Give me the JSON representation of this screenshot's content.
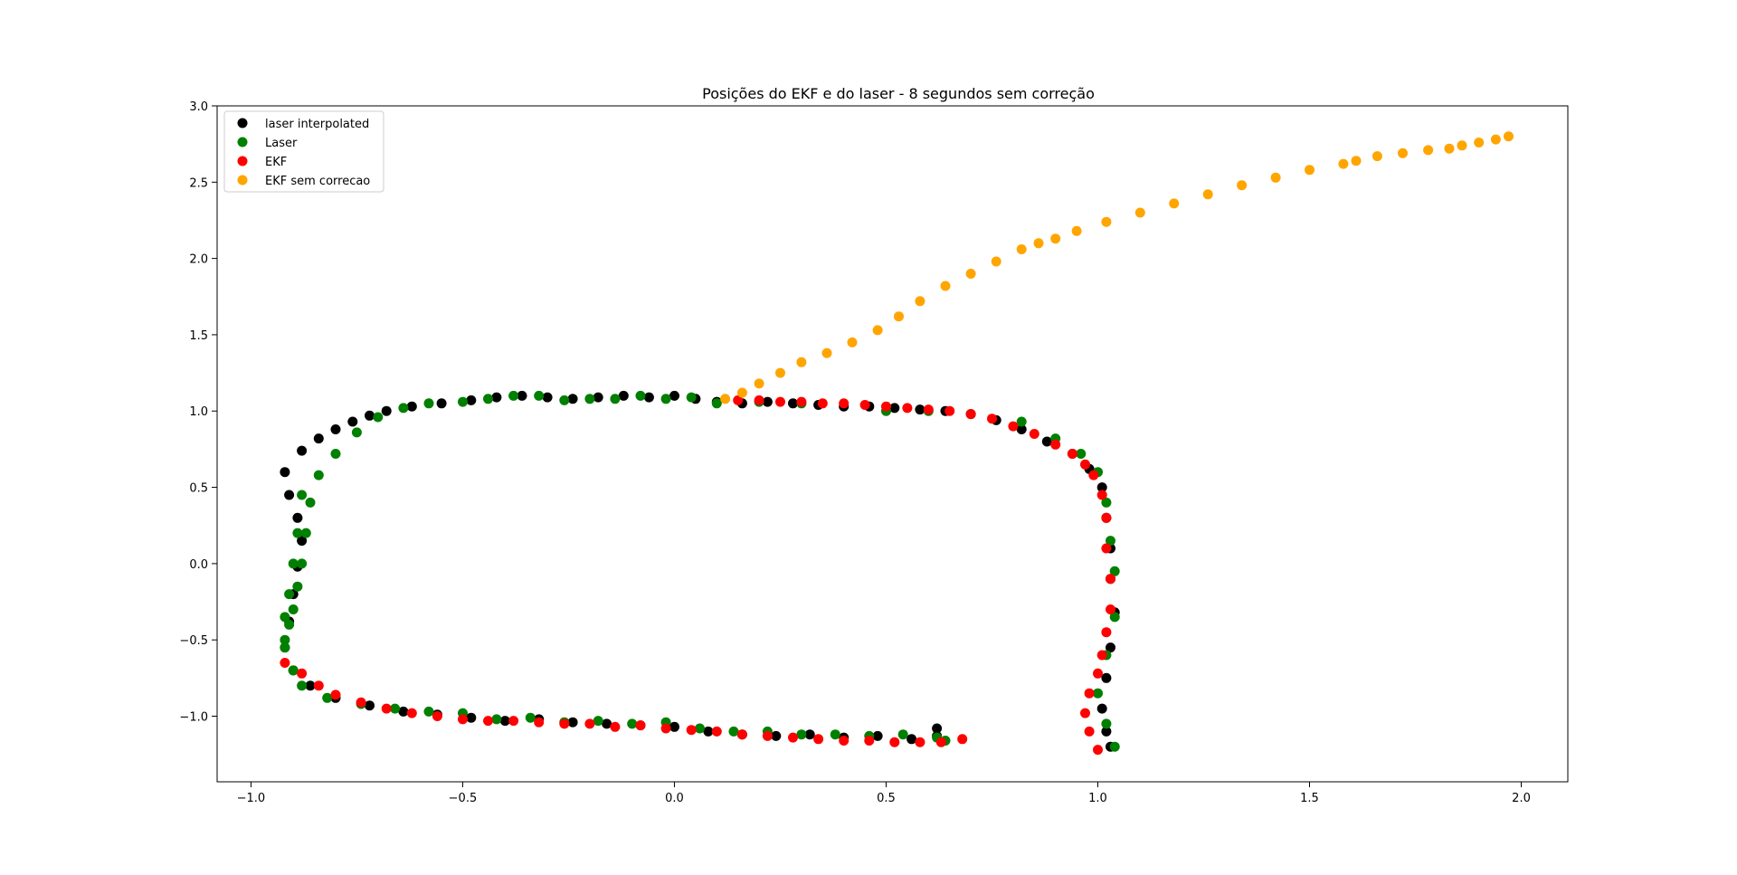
{
  "chart_data": {
    "type": "scatter",
    "title": "Posições do EKF e do laser - 8 segundos sem correção",
    "xlabel": "",
    "ylabel": "",
    "xlim": [
      -1.08,
      2.11
    ],
    "ylim": [
      -1.43,
      3.0
    ],
    "x_ticks": [
      -1.0,
      -0.5,
      0.0,
      0.5,
      1.0,
      1.5,
      2.0
    ],
    "x_tick_labels": [
      "−1.0",
      "−0.5",
      "0.0",
      "0.5",
      "1.0",
      "1.5",
      "2.0"
    ],
    "y_ticks": [
      -1.0,
      -0.5,
      0.0,
      0.5,
      1.0,
      1.5,
      2.0,
      2.5,
      3.0
    ],
    "y_tick_labels": [
      "−1.0",
      "−0.5",
      "0.0",
      "0.5",
      "1.0",
      "1.5",
      "2.0",
      "2.5",
      "3.0"
    ],
    "grid": false,
    "legend_position": "top-left",
    "series": [
      {
        "name": "laser interpolated",
        "color": "#000000",
        "x": [
          -0.92,
          -0.88,
          -0.84,
          -0.8,
          -0.76,
          -0.72,
          -0.68,
          -0.62,
          -0.55,
          -0.48,
          -0.42,
          -0.36,
          -0.3,
          -0.24,
          -0.18,
          -0.12,
          -0.06,
          0.0,
          0.05,
          0.1,
          0.16,
          0.22,
          0.28,
          0.34,
          0.4,
          0.46,
          0.52,
          0.58,
          0.64,
          0.7,
          0.76,
          0.82,
          0.88,
          0.94,
          0.98,
          1.01,
          1.02,
          1.03,
          1.03,
          1.04,
          1.03,
          1.02,
          1.01,
          1.02,
          1.03,
          -0.91,
          -0.89,
          -0.88,
          -0.89,
          -0.9,
          -0.91,
          -0.92,
          -0.9,
          -0.86,
          -0.8,
          -0.72,
          -0.64,
          -0.56,
          -0.48,
          -0.4,
          -0.32,
          -0.24,
          -0.16,
          -0.08,
          0.0,
          0.08,
          0.16,
          0.24,
          0.32,
          0.4,
          0.48,
          0.56,
          0.62,
          0.62
        ],
        "y": [
          0.6,
          0.74,
          0.82,
          0.88,
          0.93,
          0.97,
          1.0,
          1.03,
          1.05,
          1.07,
          1.09,
          1.1,
          1.09,
          1.08,
          1.09,
          1.1,
          1.09,
          1.1,
          1.08,
          1.06,
          1.05,
          1.06,
          1.05,
          1.04,
          1.03,
          1.03,
          1.02,
          1.01,
          1.0,
          0.98,
          0.94,
          0.88,
          0.8,
          0.72,
          0.62,
          0.5,
          0.3,
          0.1,
          -0.1,
          -0.32,
          -0.55,
          -0.75,
          -0.95,
          -1.1,
          -1.2,
          0.45,
          0.3,
          0.15,
          -0.02,
          -0.2,
          -0.38,
          -0.55,
          -0.7,
          -0.8,
          -0.88,
          -0.93,
          -0.97,
          -0.99,
          -1.01,
          -1.03,
          -1.02,
          -1.04,
          -1.05,
          -1.06,
          -1.07,
          -1.1,
          -1.12,
          -1.13,
          -1.12,
          -1.14,
          -1.13,
          -1.15,
          -1.13,
          -1.08
        ]
      },
      {
        "name": "Laser",
        "color": "#008000",
        "x": [
          -0.92,
          -0.91,
          -0.9,
          -0.89,
          -0.88,
          -0.87,
          -0.86,
          -0.84,
          -0.8,
          -0.75,
          -0.7,
          -0.64,
          -0.58,
          -0.5,
          -0.44,
          -0.38,
          -0.32,
          -0.26,
          -0.2,
          -0.14,
          -0.08,
          -0.02,
          0.04,
          0.1,
          0.2,
          0.3,
          0.5,
          0.6,
          0.7,
          0.82,
          0.9,
          0.96,
          1.0,
          1.02,
          1.03,
          1.04,
          1.04,
          1.02,
          1.0,
          1.02,
          1.04,
          -0.92,
          -0.92,
          -0.91,
          -0.9,
          -0.89,
          -0.88,
          -0.9,
          -0.88,
          -0.82,
          -0.74,
          -0.66,
          -0.58,
          -0.5,
          -0.42,
          -0.34,
          -0.26,
          -0.18,
          -0.1,
          -0.02,
          0.06,
          0.14,
          0.22,
          0.3,
          0.38,
          0.46,
          0.54,
          0.62,
          0.64
        ],
        "y": [
          -0.5,
          -0.4,
          -0.3,
          -0.15,
          0.0,
          0.2,
          0.4,
          0.58,
          0.72,
          0.86,
          0.96,
          1.02,
          1.05,
          1.06,
          1.08,
          1.1,
          1.1,
          1.07,
          1.08,
          1.08,
          1.1,
          1.08,
          1.09,
          1.05,
          1.06,
          1.05,
          1.0,
          1.0,
          0.98,
          0.93,
          0.82,
          0.72,
          0.6,
          0.4,
          0.15,
          -0.05,
          -0.35,
          -0.6,
          -0.85,
          -1.05,
          -1.2,
          -0.55,
          -0.35,
          -0.2,
          0.0,
          0.2,
          0.45,
          -0.7,
          -0.8,
          -0.88,
          -0.92,
          -0.95,
          -0.97,
          -0.98,
          -1.02,
          -1.01,
          -1.04,
          -1.03,
          -1.05,
          -1.04,
          -1.08,
          -1.1,
          -1.1,
          -1.12,
          -1.12,
          -1.13,
          -1.12,
          -1.14,
          -1.16
        ]
      },
      {
        "name": "EKF",
        "color": "#ff0000",
        "x": [
          0.15,
          0.2,
          0.25,
          0.3,
          0.35,
          0.4,
          0.45,
          0.5,
          0.55,
          0.6,
          0.65,
          0.7,
          0.75,
          0.8,
          0.85,
          0.9,
          0.94,
          0.97,
          0.99,
          1.01,
          1.02,
          1.02,
          1.03,
          1.03,
          1.02,
          1.01,
          1.0,
          0.98,
          0.97,
          0.98,
          1.0,
          -0.92,
          -0.88,
          -0.84,
          -0.8,
          -0.74,
          -0.68,
          -0.62,
          -0.56,
          -0.5,
          -0.44,
          -0.38,
          -0.32,
          -0.26,
          -0.2,
          -0.14,
          -0.08,
          -0.02,
          0.04,
          0.1,
          0.16,
          0.22,
          0.28,
          0.34,
          0.4,
          0.46,
          0.52,
          0.58,
          0.63,
          0.68
        ],
        "y": [
          1.07,
          1.07,
          1.06,
          1.06,
          1.05,
          1.05,
          1.04,
          1.03,
          1.02,
          1.01,
          1.0,
          0.98,
          0.95,
          0.9,
          0.85,
          0.78,
          0.72,
          0.65,
          0.58,
          0.45,
          0.3,
          0.1,
          -0.1,
          -0.3,
          -0.45,
          -0.6,
          -0.72,
          -0.85,
          -0.98,
          -1.1,
          -1.22,
          -0.65,
          -0.72,
          -0.8,
          -0.86,
          -0.91,
          -0.95,
          -0.98,
          -1.0,
          -1.02,
          -1.03,
          -1.03,
          -1.04,
          -1.05,
          -1.05,
          -1.07,
          -1.06,
          -1.08,
          -1.09,
          -1.1,
          -1.12,
          -1.13,
          -1.14,
          -1.15,
          -1.16,
          -1.16,
          -1.17,
          -1.17,
          -1.17,
          -1.15
        ]
      },
      {
        "name": "EKF sem correcao",
        "color": "#ffa500",
        "x": [
          0.12,
          0.16,
          0.2,
          0.25,
          0.3,
          0.36,
          0.42,
          0.48,
          0.53,
          0.58,
          0.64,
          0.7,
          0.76,
          0.82,
          0.86,
          0.9,
          0.95,
          1.02,
          1.1,
          1.18,
          1.26,
          1.34,
          1.42,
          1.5,
          1.58,
          1.61,
          1.66,
          1.72,
          1.78,
          1.83,
          1.86,
          1.9,
          1.94,
          1.97
        ],
        "y": [
          1.08,
          1.12,
          1.18,
          1.25,
          1.32,
          1.38,
          1.45,
          1.53,
          1.62,
          1.72,
          1.82,
          1.9,
          1.98,
          2.06,
          2.1,
          2.13,
          2.18,
          2.24,
          2.3,
          2.36,
          2.42,
          2.48,
          2.53,
          2.58,
          2.62,
          2.64,
          2.67,
          2.69,
          2.71,
          2.72,
          2.74,
          2.76,
          2.78,
          2.8
        ]
      }
    ]
  }
}
